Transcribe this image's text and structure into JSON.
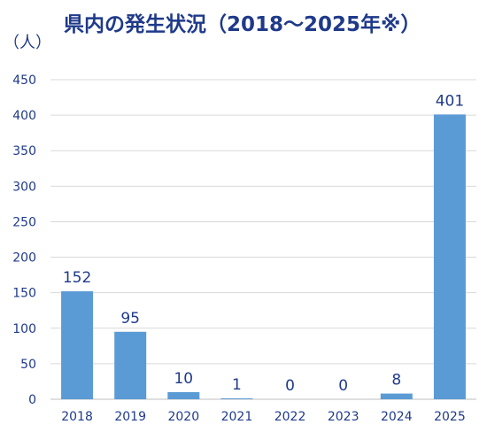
{
  "chart_data": {
    "type": "bar",
    "title": "県内の発生状況（2018～2025年※）",
    "ylabel": "（人）",
    "xlabel": "",
    "categories": [
      "2018",
      "2019",
      "2020",
      "2021",
      "2022",
      "2023",
      "2024",
      "2025"
    ],
    "values": [
      152,
      95,
      10,
      1,
      0,
      0,
      8,
      401
    ],
    "data_labels": [
      "152",
      "95",
      "10",
      "1",
      "0",
      "0",
      "8",
      "401"
    ],
    "ylim": [
      0,
      450
    ],
    "yticks": [
      0,
      50,
      100,
      150,
      200,
      250,
      300,
      350,
      400,
      450
    ],
    "grid": true,
    "bar_color": "#5b9bd5",
    "grid_color": "#d9d9d9",
    "text_color": "#1f3a8a"
  }
}
